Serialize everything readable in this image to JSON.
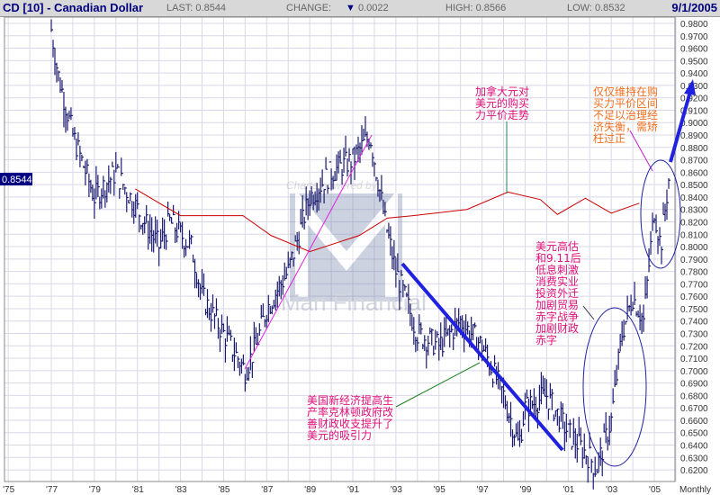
{
  "header": {
    "title": "CD [10] - Canadian Dollar",
    "last": "LAST: 0.8544",
    "change_label": "CHANGE:",
    "change_value": "0.0022",
    "high": "HIGH: 0.8566",
    "low": "LOW: 0.8532",
    "date": "9/1/2005"
  },
  "chart_data": {
    "type": "line",
    "title": "CD [10] - Canadian Dollar",
    "xlabel": "",
    "ylabel": "",
    "period_label": "Monthly",
    "ylim": [
      0.615,
      0.985
    ],
    "xlim": [
      1975,
      2006
    ],
    "x_tick_labels": [
      "'75",
      "'77",
      "'79",
      "'81",
      "'83",
      "'85",
      "'87",
      "'89",
      "'91",
      "'93",
      "'95",
      "'97",
      "'99",
      "'01",
      "'03",
      "'05"
    ],
    "x_tick_years": [
      1975,
      1977,
      1979,
      1981,
      1983,
      1985,
      1987,
      1989,
      1991,
      1993,
      1995,
      1997,
      1999,
      2001,
      2003,
      2005
    ],
    "y_tick_labels": [
      "0.9800",
      "0.9700",
      "0.9600",
      "0.9500",
      "0.9400",
      "0.9300",
      "0.9200",
      "0.9100",
      "0.9000",
      "0.8900",
      "0.8800",
      "0.8700",
      "0.8600",
      "0.8500",
      "0.8400",
      "0.8300",
      "0.8200",
      "0.8100",
      "0.8000",
      "0.7900",
      "0.7800",
      "0.7700",
      "0.7600",
      "0.7500",
      "0.7400",
      "0.7300",
      "0.7200",
      "0.7100",
      "0.7000",
      "0.6900",
      "0.6800",
      "0.6700",
      "0.6600",
      "0.6500",
      "0.6400",
      "0.6300",
      "0.6200"
    ],
    "last_value_label": "0.8544",
    "watermark": "Charts powered by: Man Financial",
    "series": [
      {
        "name": "price",
        "style": "bars",
        "color": "#1a1a6e",
        "points": [
          [
            1977.0,
            0.975
          ],
          [
            1977.3,
            0.94
          ],
          [
            1978,
            0.89
          ],
          [
            1979,
            0.84
          ],
          [
            1980,
            0.86
          ],
          [
            1981,
            0.83
          ],
          [
            1982,
            0.8
          ],
          [
            1982.5,
            0.82
          ],
          [
            1983,
            0.81
          ],
          [
            1983.5,
            0.8
          ],
          [
            1984,
            0.76
          ],
          [
            1985,
            0.73
          ],
          [
            1986,
            0.7
          ],
          [
            1986.5,
            0.72
          ],
          [
            1987,
            0.75
          ],
          [
            1988,
            0.78
          ],
          [
            1989,
            0.84
          ],
          [
            1990,
            0.86
          ],
          [
            1991,
            0.87
          ],
          [
            1991.8,
            0.89
          ],
          [
            1992.5,
            0.82
          ],
          [
            1993,
            0.78
          ],
          [
            1994,
            0.73
          ],
          [
            1995,
            0.72
          ],
          [
            1996,
            0.74
          ],
          [
            1997,
            0.72
          ],
          [
            1998,
            0.68
          ],
          [
            1998.7,
            0.64
          ],
          [
            1999,
            0.67
          ],
          [
            2000,
            0.68
          ],
          [
            2001,
            0.65
          ],
          [
            2002,
            0.63
          ],
          [
            2002.3,
            0.62
          ],
          [
            2003,
            0.66
          ],
          [
            2003.5,
            0.73
          ],
          [
            2004,
            0.76
          ],
          [
            2004.5,
            0.74
          ],
          [
            2005,
            0.83
          ],
          [
            2005.3,
            0.8
          ],
          [
            2005.67,
            0.8544
          ]
        ]
      },
      {
        "name": "moving-average",
        "style": "line",
        "color": "#cc0000",
        "points": [
          [
            1980.9,
            0.8465
          ],
          [
            1983,
            0.825
          ],
          [
            1985.9,
            0.825
          ],
          [
            1987.2,
            0.809
          ],
          [
            1989,
            0.796
          ],
          [
            1991.3,
            0.809
          ],
          [
            1992.6,
            0.823
          ],
          [
            1993.8,
            0.825
          ],
          [
            1996.3,
            0.83
          ],
          [
            1998.2,
            0.844
          ],
          [
            1999.7,
            0.838
          ],
          [
            2000.5,
            0.826
          ],
          [
            2001.8,
            0.839
          ],
          [
            2003,
            0.827
          ],
          [
            2004.3,
            0.835
          ]
        ]
      }
    ],
    "annotations": [
      {
        "text": "加拿大元对\n美元的购买\n力平价走势",
        "color": "#e0107a"
      },
      {
        "text": "仅仅维持在购\n买力平价区间\n不足以治理经\n济失衡，需矫\n枉过正",
        "color": "#f07020"
      },
      {
        "text": "美元高估\n和9.11后\n低息刺激\n消费实业\n投资外迁\n加剧贸易\n赤字战争\n加剧财政\n赤字",
        "color": "#e0107a"
      },
      {
        "text": "美国新经济提高生\n产率克林顿政府改\n善财政收支提升了\n美元的吸引力",
        "color": "#e0107a"
      }
    ]
  }
}
